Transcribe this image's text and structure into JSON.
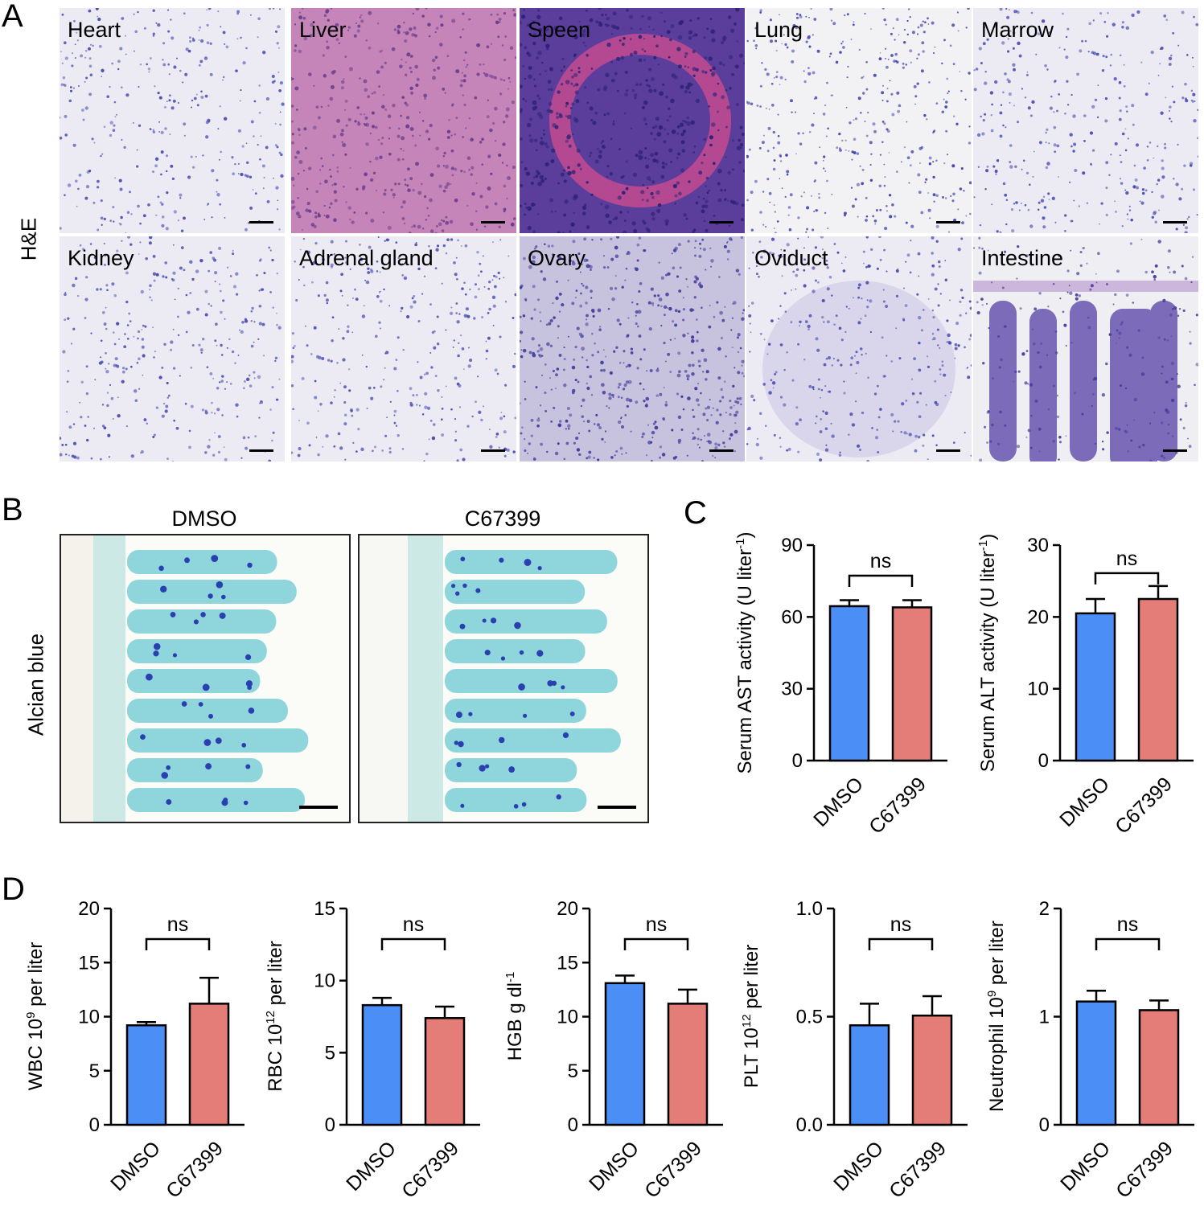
{
  "panels": {
    "A": "A",
    "B": "B",
    "C": "C",
    "D": "D"
  },
  "he": {
    "row_label": "H&E",
    "tiles": [
      {
        "label": "Heart",
        "stain": "pale"
      },
      {
        "label": "Liver",
        "stain": "pink"
      },
      {
        "label": "Speen",
        "stain": "dense"
      },
      {
        "label": "Lung",
        "stain": "sparse"
      },
      {
        "label": "Marrow",
        "stain": "pale"
      },
      {
        "label": "Kidney",
        "stain": "pale"
      },
      {
        "label": "Adrenal gland",
        "stain": "pale"
      },
      {
        "label": "Ovary",
        "stain": "medium"
      },
      {
        "label": "Oviduct",
        "stain": "pale"
      },
      {
        "label": "Intestine",
        "stain": "villi"
      }
    ]
  },
  "alcian": {
    "row_label": "Alcian blue",
    "images": [
      {
        "title": "DMSO"
      },
      {
        "title": "C67399"
      }
    ]
  },
  "colors": {
    "dmso": "#4b8ef5",
    "c67399": "#e47d77",
    "he_pale": "#e3e3f0",
    "he_pink": "#c582b8",
    "he_dense": "#5a3a9a",
    "alcian": "#8fd6dc"
  },
  "chart_data": [
    {
      "type": "bar",
      "categories": [
        "DMSO",
        "C67399"
      ],
      "values": [
        64.5,
        64.0
      ],
      "errors": [
        2.5,
        3.0
      ],
      "ylabel": "Serum AST activity (U liter",
      "ylabel_sup": "-1",
      "ylabel_end": ")",
      "ylim": [
        0,
        90
      ],
      "yticks": [
        "0",
        "30",
        "60",
        "90"
      ],
      "significance": "ns"
    },
    {
      "type": "bar",
      "categories": [
        "DMSO",
        "C67399"
      ],
      "values": [
        20.5,
        22.5
      ],
      "errors": [
        2.0,
        1.8
      ],
      "ylabel": "Serum ALT activity (U liter",
      "ylabel_sup": "-1",
      "ylabel_end": ")",
      "ylim": [
        0,
        30
      ],
      "yticks": [
        "0",
        "10",
        "20",
        "30"
      ],
      "significance": "ns"
    },
    {
      "type": "bar",
      "categories": [
        "DMSO",
        "C67399"
      ],
      "values": [
        9.2,
        11.2
      ],
      "errors": [
        0.3,
        2.4
      ],
      "ylabel": "WBC 10",
      "ylabel_sup": "9",
      "ylabel_end": " per liter",
      "ylim": [
        0,
        20
      ],
      "yticks": [
        "0",
        "5",
        "10",
        "15",
        "20"
      ],
      "significance": "ns"
    },
    {
      "type": "bar",
      "categories": [
        "DMSO",
        "C67399"
      ],
      "values": [
        8.3,
        7.4
      ],
      "errors": [
        0.5,
        0.8
      ],
      "ylabel": "RBC 10",
      "ylabel_sup": "12",
      "ylabel_end": " per liter",
      "ylim": [
        0,
        15
      ],
      "yticks": [
        "0",
        "5",
        "10",
        "15"
      ],
      "significance": "ns"
    },
    {
      "type": "bar",
      "categories": [
        "DMSO",
        "C67399"
      ],
      "values": [
        13.1,
        11.2
      ],
      "errors": [
        0.7,
        1.3
      ],
      "ylabel": "HGB g dl",
      "ylabel_sup": "-1",
      "ylabel_end": "",
      "ylim": [
        0,
        20
      ],
      "yticks": [
        "0",
        "5",
        "10",
        "15",
        "20"
      ],
      "significance": "ns"
    },
    {
      "type": "bar",
      "categories": [
        "DMSO",
        "C67399"
      ],
      "values": [
        0.46,
        0.505
      ],
      "errors": [
        0.1,
        0.09
      ],
      "ylabel": "PLT 10",
      "ylabel_sup": "12",
      "ylabel_end": " per liter",
      "ylim": [
        0,
        1.0
      ],
      "yticks": [
        "0.0",
        "0.5",
        "1.0"
      ],
      "significance": "ns"
    },
    {
      "type": "bar",
      "categories": [
        "DMSO",
        "C67399"
      ],
      "values": [
        1.14,
        1.06
      ],
      "errors": [
        0.1,
        0.09
      ],
      "ylabel": "Neutrophil 10",
      "ylabel_sup": "9",
      "ylabel_end": " per liter",
      "ylim": [
        0,
        2
      ],
      "yticks": [
        "0",
        "1",
        "2"
      ],
      "significance": "ns"
    }
  ]
}
